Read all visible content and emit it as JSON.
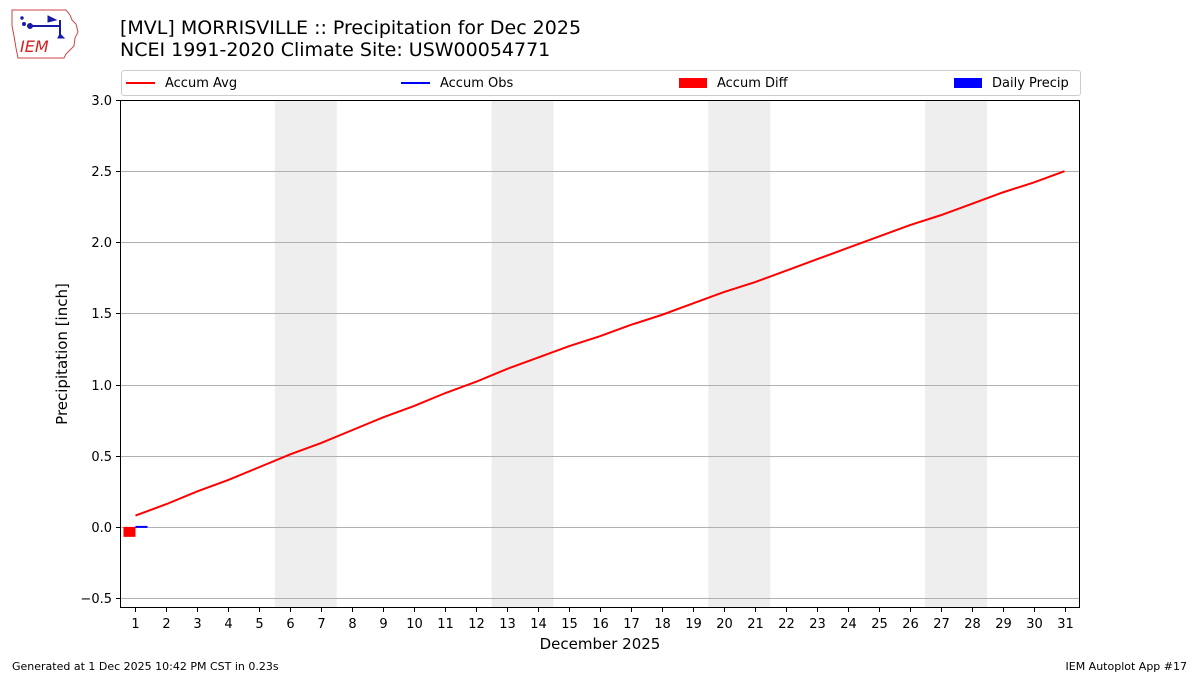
{
  "header": {
    "logo_text": "IEM",
    "title_line1": "[MVL] MORRISVILLE :: Precipitation for Dec 2025",
    "title_line2": "NCEI 1991-2020 Climate Site: USW00054771"
  },
  "legend": {
    "accum_avg": "Accum Avg",
    "accum_obs": "Accum Obs",
    "accum_diff": "Accum Diff",
    "daily_precip": "Daily Precip"
  },
  "colors": {
    "accum_avg": "#ff0000",
    "accum_obs": "#0000ff",
    "accum_diff": "#ff0000",
    "daily_precip": "#0000ff",
    "weekend_shade": "#eeeeee",
    "grid": "#b0b0b0"
  },
  "footer": {
    "left": "Generated at 1 Dec 2025 10:42 PM CST in 0.23s",
    "right": "IEM Autoplot App #17"
  },
  "chart_data": {
    "type": "line",
    "xlabel": "December 2025",
    "ylabel": "Precipitation [inch]",
    "xlim": [
      0.5,
      31.5
    ],
    "ylim": [
      -0.57,
      3.0
    ],
    "grid": "horizontal",
    "legend_position": "top",
    "x": [
      1,
      2,
      3,
      4,
      5,
      6,
      7,
      8,
      9,
      10,
      11,
      12,
      13,
      14,
      15,
      16,
      17,
      18,
      19,
      20,
      21,
      22,
      23,
      24,
      25,
      26,
      27,
      28,
      29,
      30,
      31
    ],
    "x_tick_labels": [
      "1",
      "2",
      "3",
      "4",
      "5",
      "6",
      "7",
      "8",
      "9",
      "10",
      "11",
      "12",
      "13",
      "14",
      "15",
      "16",
      "17",
      "18",
      "19",
      "20",
      "21",
      "22",
      "23",
      "24",
      "25",
      "26",
      "27",
      "28",
      "29",
      "30",
      "31"
    ],
    "y_ticks": [
      -0.5,
      0.0,
      0.5,
      1.0,
      1.5,
      2.0,
      2.5,
      3.0
    ],
    "y_tick_labels": [
      "−0.5",
      "0.0",
      "0.5",
      "1.0",
      "1.5",
      "2.0",
      "2.5",
      "3.0"
    ],
    "weekends": [
      [
        6,
        7
      ],
      [
        13,
        14
      ],
      [
        20,
        21
      ],
      [
        27,
        28
      ]
    ],
    "series": [
      {
        "name": "Accum Avg",
        "kind": "line",
        "x": [
          1,
          2,
          3,
          4,
          5,
          6,
          7,
          8,
          9,
          10,
          11,
          12,
          13,
          14,
          15,
          16,
          17,
          18,
          19,
          20,
          21,
          22,
          23,
          24,
          25,
          26,
          27,
          28,
          29,
          30,
          31
        ],
        "values": [
          0.08,
          0.16,
          0.25,
          0.33,
          0.42,
          0.51,
          0.59,
          0.68,
          0.77,
          0.85,
          0.94,
          1.02,
          1.11,
          1.19,
          1.27,
          1.34,
          1.42,
          1.49,
          1.57,
          1.65,
          1.72,
          1.8,
          1.88,
          1.96,
          2.04,
          2.12,
          2.19,
          2.27,
          2.35,
          2.42,
          2.5
        ]
      },
      {
        "name": "Accum Obs",
        "kind": "line",
        "x": [
          1
        ],
        "values": [
          0.0
        ]
      },
      {
        "name": "Accum Diff",
        "kind": "bar",
        "x": [
          1
        ],
        "values": [
          -0.07
        ]
      },
      {
        "name": "Daily Precip",
        "kind": "bar",
        "x": [
          1
        ],
        "values": [
          0.0
        ]
      }
    ]
  }
}
